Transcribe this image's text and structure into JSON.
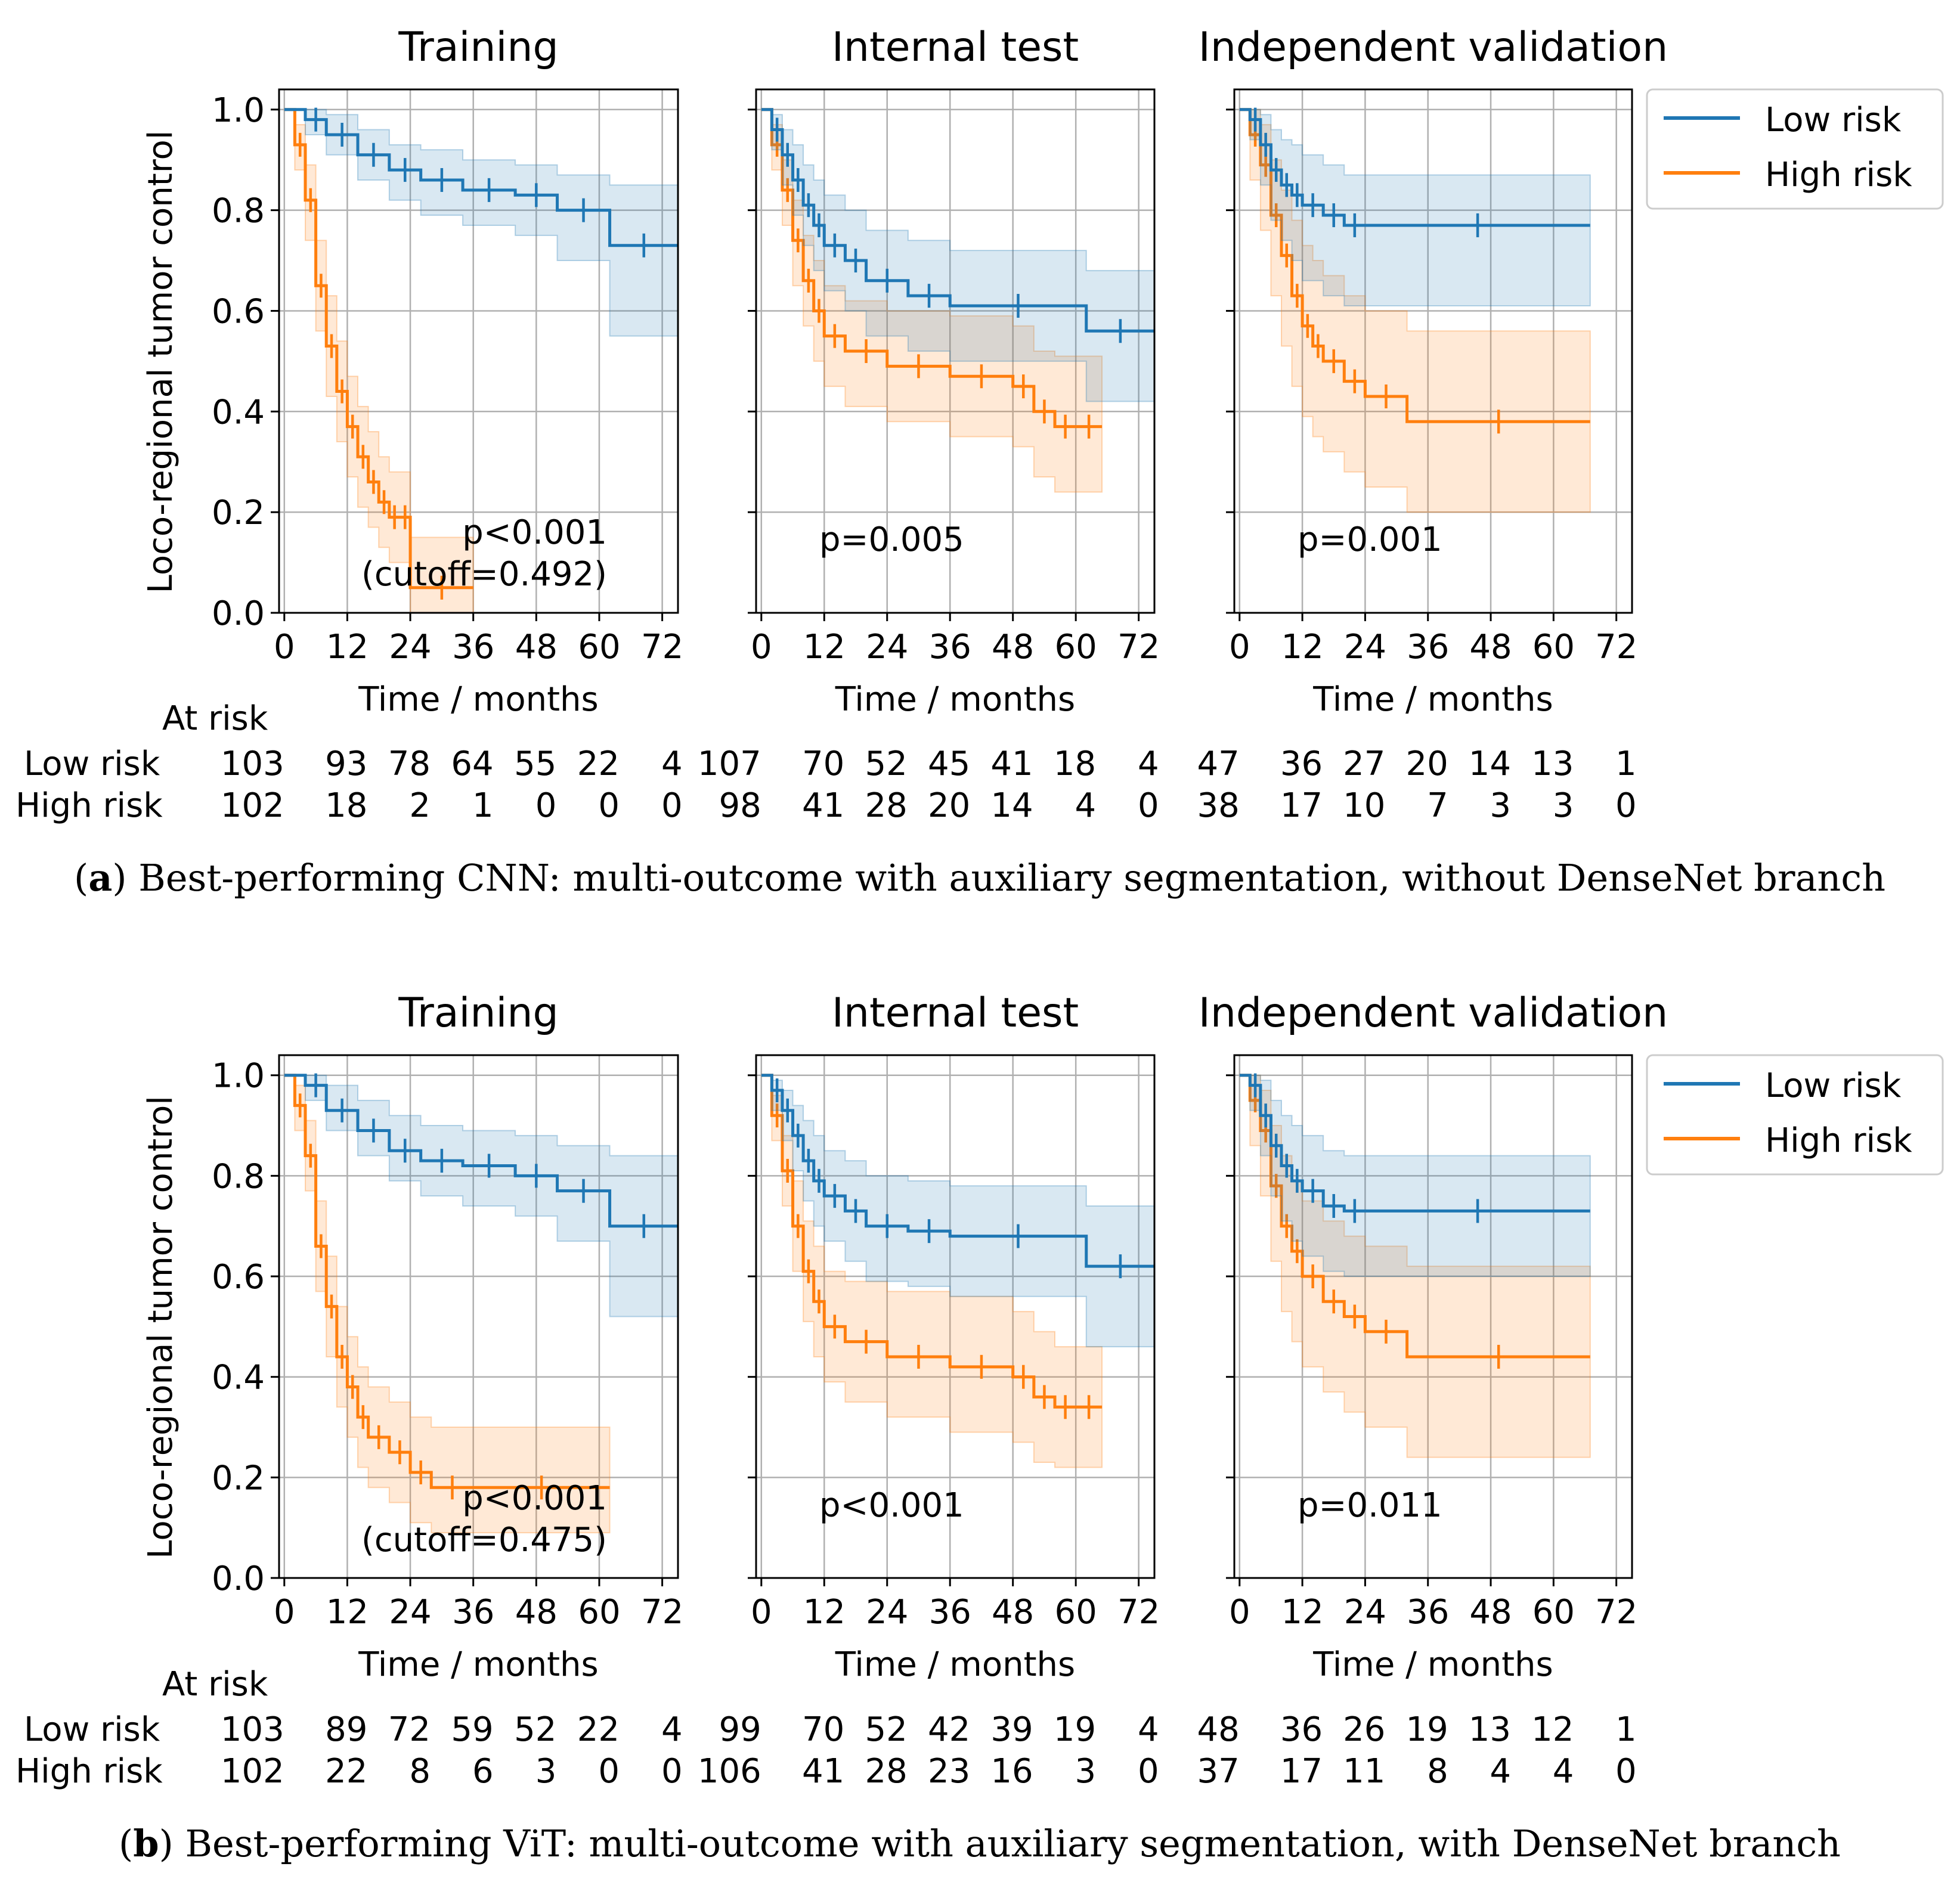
{
  "chart_data": [
    {
      "id": "a",
      "type": "line",
      "subtype": "kaplan-meier",
      "caption_letter": "a",
      "caption_text": ") Best-performing CNN: multi-outcome with auxiliary segmentation, without DenseNet branch",
      "ylabel": "Loco-regional tumor control",
      "xlabel": "Time / months",
      "xlim": [
        -1,
        75
      ],
      "ylim": [
        0,
        1.04
      ],
      "xticks": [
        0,
        12,
        24,
        36,
        48,
        60,
        72
      ],
      "yticks": [
        0.0,
        0.2,
        0.4,
        0.6,
        0.8,
        1.0
      ],
      "legend": {
        "entries": [
          "Low risk",
          "High risk"
        ],
        "placement": "upper-right-outside"
      },
      "at_risk_title": "At risk",
      "at_risk_row_labels": [
        "Low risk",
        "High risk"
      ],
      "colors": {
        "low": "#1f77b4",
        "high": "#ff7f0e"
      },
      "panels": [
        {
          "title": "Training",
          "pvalue": "p<0.001",
          "cutoff": "(cutoff=0.492)",
          "low": {
            "t": [
              0,
              4,
              8,
              14,
              20,
              26,
              34,
              44,
              52,
              62,
              75
            ],
            "s": [
              1.0,
              0.98,
              0.95,
              0.91,
              0.88,
              0.86,
              0.84,
              0.83,
              0.8,
              0.73,
              0.73
            ],
            "lo": [
              1.0,
              0.95,
              0.91,
              0.86,
              0.82,
              0.79,
              0.77,
              0.75,
              0.7,
              0.55,
              0.55
            ],
            "hi": [
              1.0,
              1.0,
              0.99,
              0.96,
              0.93,
              0.92,
              0.9,
              0.89,
              0.87,
              0.85,
              0.85
            ]
          },
          "high": {
            "t": [
              0,
              2,
              4,
              6,
              8,
              10,
              12,
              14,
              16,
              18,
              20,
              22,
              24,
              36
            ],
            "s": [
              1.0,
              0.93,
              0.82,
              0.65,
              0.53,
              0.44,
              0.37,
              0.31,
              0.26,
              0.22,
              0.19,
              0.19,
              0.05,
              0.05
            ],
            "lo": [
              1.0,
              0.88,
              0.74,
              0.56,
              0.43,
              0.34,
              0.27,
              0.21,
              0.17,
              0.13,
              0.1,
              0.1,
              0.0,
              0.0
            ],
            "hi": [
              1.0,
              0.97,
              0.89,
              0.74,
              0.63,
              0.54,
              0.47,
              0.41,
              0.36,
              0.31,
              0.28,
              0.28,
              0.15,
              0.15
            ]
          },
          "at_risk_low": [
            "103",
            "93",
            "78",
            "64",
            "55",
            "22",
            "4"
          ],
          "at_risk_high": [
            "102",
            "18",
            "2",
            "1",
            "0",
            "0",
            "0"
          ]
        },
        {
          "title": "Internal test",
          "pvalue": "p=0.005",
          "low": {
            "t": [
              0,
              2,
              4,
              6,
              8,
              10,
              12,
              16,
              20,
              28,
              36,
              62,
              75
            ],
            "s": [
              1.0,
              0.96,
              0.91,
              0.86,
              0.81,
              0.77,
              0.73,
              0.7,
              0.66,
              0.63,
              0.61,
              0.56,
              0.56
            ],
            "lo": [
              1.0,
              0.92,
              0.85,
              0.79,
              0.73,
              0.68,
              0.64,
              0.6,
              0.55,
              0.52,
              0.5,
              0.42,
              0.42
            ],
            "hi": [
              1.0,
              0.99,
              0.96,
              0.93,
              0.89,
              0.86,
              0.83,
              0.8,
              0.76,
              0.74,
              0.72,
              0.68,
              0.68
            ]
          },
          "high": {
            "t": [
              0,
              2,
              4,
              6,
              8,
              10,
              12,
              16,
              24,
              36,
              48,
              52,
              56,
              60,
              65
            ],
            "s": [
              1.0,
              0.93,
              0.84,
              0.74,
              0.66,
              0.6,
              0.55,
              0.52,
              0.49,
              0.47,
              0.45,
              0.4,
              0.37,
              0.37,
              0.37
            ],
            "lo": [
              1.0,
              0.88,
              0.77,
              0.65,
              0.57,
              0.5,
              0.45,
              0.41,
              0.38,
              0.35,
              0.33,
              0.27,
              0.24,
              0.24,
              0.24
            ],
            "hi": [
              1.0,
              0.97,
              0.9,
              0.82,
              0.75,
              0.7,
              0.65,
              0.62,
              0.6,
              0.59,
              0.57,
              0.52,
              0.51,
              0.51,
              0.51
            ]
          },
          "at_risk_low": [
            "107",
            "70",
            "52",
            "45",
            "41",
            "18",
            "4"
          ],
          "at_risk_high": [
            "98",
            "41",
            "28",
            "20",
            "14",
            "4",
            "0"
          ]
        },
        {
          "title": "Independent validation",
          "pvalue": "p=0.001",
          "low": {
            "t": [
              0,
              2,
              4,
              6,
              8,
              10,
              12,
              16,
              20,
              24,
              67
            ],
            "s": [
              1.0,
              0.98,
              0.93,
              0.88,
              0.85,
              0.83,
              0.81,
              0.79,
              0.77,
              0.77,
              0.77
            ],
            "lo": [
              1.0,
              0.94,
              0.85,
              0.78,
              0.74,
              0.7,
              0.66,
              0.63,
              0.61,
              0.61,
              0.61
            ],
            "hi": [
              1.0,
              1.0,
              0.99,
              0.96,
              0.94,
              0.93,
              0.91,
              0.89,
              0.87,
              0.87,
              0.87
            ]
          },
          "high": {
            "t": [
              0,
              2,
              4,
              6,
              8,
              10,
              12,
              14,
              16,
              20,
              24,
              32,
              67
            ],
            "s": [
              1.0,
              0.95,
              0.89,
              0.79,
              0.71,
              0.63,
              0.57,
              0.53,
              0.5,
              0.46,
              0.43,
              0.38,
              0.38
            ],
            "lo": [
              1.0,
              0.86,
              0.76,
              0.63,
              0.53,
              0.45,
              0.39,
              0.35,
              0.32,
              0.28,
              0.25,
              0.2,
              0.2
            ],
            "hi": [
              1.0,
              1.0,
              0.97,
              0.9,
              0.84,
              0.78,
              0.73,
              0.7,
              0.67,
              0.63,
              0.6,
              0.56,
              0.56
            ]
          },
          "at_risk_low": [
            "47",
            "36",
            "27",
            "20",
            "14",
            "13",
            "1"
          ],
          "at_risk_high": [
            "38",
            "17",
            "10",
            "7",
            "3",
            "3",
            "0"
          ]
        }
      ]
    },
    {
      "id": "b",
      "type": "line",
      "subtype": "kaplan-meier",
      "caption_letter": "b",
      "caption_text": ") Best-performing ViT: multi-outcome with auxiliary segmentation, with DenseNet branch",
      "ylabel": "Loco-regional tumor control",
      "xlabel": "Time / months",
      "xlim": [
        -1,
        75
      ],
      "ylim": [
        0,
        1.04
      ],
      "xticks": [
        0,
        12,
        24,
        36,
        48,
        60,
        72
      ],
      "yticks": [
        0.0,
        0.2,
        0.4,
        0.6,
        0.8,
        1.0
      ],
      "legend": {
        "entries": [
          "Low risk",
          "High risk"
        ],
        "placement": "upper-right-outside"
      },
      "at_risk_title": "At risk",
      "at_risk_row_labels": [
        "Low risk",
        "High risk"
      ],
      "colors": {
        "low": "#1f77b4",
        "high": "#ff7f0e"
      },
      "panels": [
        {
          "title": "Training",
          "pvalue": "p<0.001",
          "cutoff": "(cutoff=0.475)",
          "low": {
            "t": [
              0,
              4,
              8,
              14,
              20,
              26,
              34,
              44,
              52,
              62,
              75
            ],
            "s": [
              1.0,
              0.98,
              0.93,
              0.89,
              0.85,
              0.83,
              0.82,
              0.8,
              0.77,
              0.7,
              0.7
            ],
            "lo": [
              1.0,
              0.95,
              0.89,
              0.84,
              0.79,
              0.76,
              0.74,
              0.72,
              0.67,
              0.52,
              0.52
            ],
            "hi": [
              1.0,
              1.0,
              0.98,
              0.95,
              0.92,
              0.9,
              0.89,
              0.88,
              0.86,
              0.84,
              0.84
            ]
          },
          "high": {
            "t": [
              0,
              2,
              4,
              6,
              8,
              10,
              12,
              14,
              16,
              20,
              24,
              28,
              36,
              62
            ],
            "s": [
              1.0,
              0.94,
              0.84,
              0.66,
              0.54,
              0.44,
              0.38,
              0.32,
              0.28,
              0.25,
              0.21,
              0.18,
              0.18,
              0.18
            ],
            "lo": [
              1.0,
              0.89,
              0.77,
              0.57,
              0.44,
              0.34,
              0.28,
              0.22,
              0.18,
              0.15,
              0.11,
              0.09,
              0.09,
              0.09
            ],
            "hi": [
              1.0,
              0.98,
              0.91,
              0.75,
              0.64,
              0.54,
              0.48,
              0.42,
              0.38,
              0.35,
              0.32,
              0.3,
              0.3,
              0.3
            ]
          },
          "at_risk_low": [
            "103",
            "89",
            "72",
            "59",
            "52",
            "22",
            "4"
          ],
          "at_risk_high": [
            "102",
            "22",
            "8",
            "6",
            "3",
            "0",
            "0"
          ]
        },
        {
          "title": "Internal test",
          "pvalue": "p<0.001",
          "low": {
            "t": [
              0,
              2,
              4,
              6,
              8,
              10,
              12,
              16,
              20,
              28,
              36,
              62,
              75
            ],
            "s": [
              1.0,
              0.97,
              0.93,
              0.88,
              0.83,
              0.79,
              0.76,
              0.73,
              0.7,
              0.69,
              0.68,
              0.62,
              0.62
            ],
            "lo": [
              1.0,
              0.93,
              0.87,
              0.81,
              0.75,
              0.7,
              0.67,
              0.63,
              0.59,
              0.58,
              0.56,
              0.46,
              0.46
            ],
            "hi": [
              1.0,
              0.99,
              0.97,
              0.94,
              0.91,
              0.88,
              0.85,
              0.83,
              0.8,
              0.79,
              0.78,
              0.74,
              0.74
            ]
          },
          "high": {
            "t": [
              0,
              2,
              4,
              6,
              8,
              10,
              12,
              16,
              24,
              36,
              48,
              52,
              56,
              60,
              65
            ],
            "s": [
              1.0,
              0.92,
              0.81,
              0.7,
              0.61,
              0.55,
              0.5,
              0.47,
              0.44,
              0.42,
              0.4,
              0.36,
              0.34,
              0.34,
              0.34
            ],
            "lo": [
              1.0,
              0.87,
              0.74,
              0.61,
              0.51,
              0.44,
              0.39,
              0.35,
              0.32,
              0.29,
              0.27,
              0.23,
              0.22,
              0.22,
              0.22
            ],
            "hi": [
              1.0,
              0.96,
              0.88,
              0.79,
              0.71,
              0.66,
              0.61,
              0.59,
              0.57,
              0.56,
              0.53,
              0.49,
              0.46,
              0.46,
              0.46
            ]
          },
          "at_risk_low": [
            "99",
            "70",
            "52",
            "42",
            "39",
            "19",
            "4"
          ],
          "at_risk_high": [
            "106",
            "41",
            "28",
            "23",
            "16",
            "3",
            "0"
          ]
        },
        {
          "title": "Independent validation",
          "pvalue": "p=0.011",
          "low": {
            "t": [
              0,
              2,
              4,
              6,
              8,
              10,
              12,
              16,
              20,
              24,
              67
            ],
            "s": [
              1.0,
              0.98,
              0.92,
              0.86,
              0.82,
              0.79,
              0.77,
              0.74,
              0.73,
              0.73,
              0.73
            ],
            "lo": [
              1.0,
              0.93,
              0.84,
              0.76,
              0.71,
              0.67,
              0.64,
              0.61,
              0.6,
              0.6,
              0.6
            ],
            "hi": [
              1.0,
              1.0,
              0.99,
              0.95,
              0.92,
              0.9,
              0.88,
              0.85,
              0.84,
              0.84,
              0.84
            ]
          },
          "high": {
            "t": [
              0,
              2,
              4,
              6,
              8,
              10,
              12,
              16,
              20,
              24,
              32,
              67
            ],
            "s": [
              1.0,
              0.95,
              0.89,
              0.78,
              0.7,
              0.65,
              0.6,
              0.55,
              0.52,
              0.49,
              0.44,
              0.44
            ],
            "lo": [
              1.0,
              0.86,
              0.76,
              0.63,
              0.53,
              0.47,
              0.42,
              0.37,
              0.33,
              0.3,
              0.24,
              0.24
            ],
            "hi": [
              1.0,
              1.0,
              0.97,
              0.9,
              0.84,
              0.79,
              0.75,
              0.71,
              0.68,
              0.66,
              0.62,
              0.62
            ]
          },
          "at_risk_low": [
            "48",
            "36",
            "26",
            "19",
            "13",
            "12",
            "1"
          ],
          "at_risk_high": [
            "37",
            "17",
            "11",
            "8",
            "4",
            "4",
            "0"
          ]
        }
      ]
    }
  ]
}
